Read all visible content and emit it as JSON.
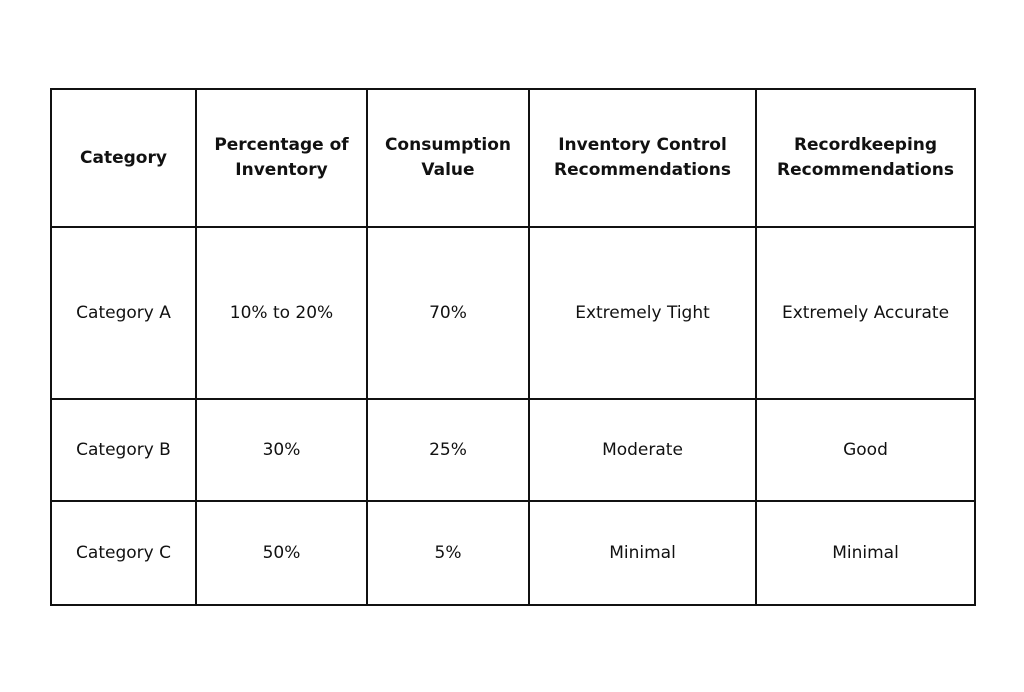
{
  "table": {
    "headers": [
      "Category",
      "Percentage of Inventory",
      "Consumption Value",
      "Inventory Control Recommendations",
      "Recordkeeping Recommendations"
    ],
    "rows": [
      [
        "Category A",
        "10% to 20%",
        "70%",
        "Extremely Tight",
        "Extremely Accurate"
      ],
      [
        "Category B",
        "30%",
        "25%",
        "Moderate",
        "Good"
      ],
      [
        "Category C",
        "50%",
        "5%",
        "Minimal",
        "Minimal"
      ]
    ]
  },
  "colors": {
    "text": "#111111",
    "border": "#111111",
    "background": "#ffffff"
  }
}
